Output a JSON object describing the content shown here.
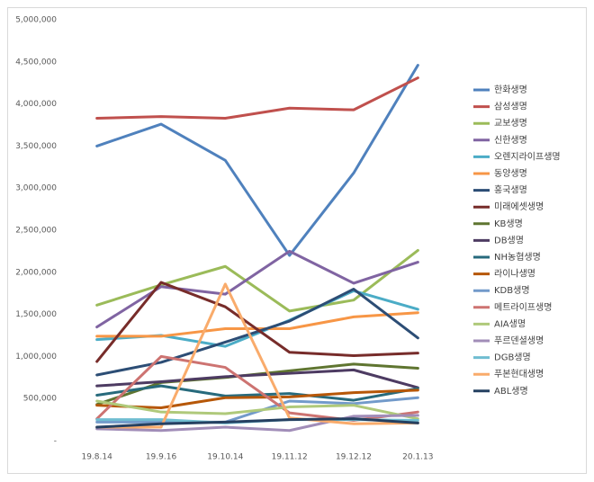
{
  "chart_data": {
    "type": "line",
    "x": [
      "19.8.14",
      "19.9.16",
      "19.10.14",
      "19.11.12",
      "19.12.12",
      "20.1.13"
    ],
    "ylim": [
      0,
      5000000
    ],
    "yticks": [
      {
        "value": 0,
        "label": "-"
      },
      {
        "value": 500000,
        "label": "500,000"
      },
      {
        "value": 1000000,
        "label": "1,000,000"
      },
      {
        "value": 1500000,
        "label": "1,500,000"
      },
      {
        "value": 2000000,
        "label": "2,000,000"
      },
      {
        "value": 2500000,
        "label": "2,500,000"
      },
      {
        "value": 3000000,
        "label": "3,000,000"
      },
      {
        "value": 3500000,
        "label": "3,500,000"
      },
      {
        "value": 4000000,
        "label": "4,000,000"
      },
      {
        "value": 4500000,
        "label": "4,500,000"
      },
      {
        "value": 5000000,
        "label": "5,000,000"
      }
    ],
    "grid": false,
    "legend": "right",
    "series": [
      {
        "name": "한화생명",
        "color": "#4f81bd",
        "values": [
          3500000,
          3760000,
          3330000,
          2200000,
          3180000,
          4460000
        ]
      },
      {
        "name": "삼성생명",
        "color": "#c0504d",
        "values": [
          3830000,
          3850000,
          3830000,
          3950000,
          3930000,
          4310000
        ]
      },
      {
        "name": "교보생명",
        "color": "#9bbb59",
        "values": [
          1610000,
          1850000,
          2070000,
          1540000,
          1670000,
          2260000
        ]
      },
      {
        "name": "신한생명",
        "color": "#8064a2",
        "values": [
          1350000,
          1830000,
          1740000,
          2250000,
          1870000,
          2120000
        ]
      },
      {
        "name": "오렌지라이프생명",
        "color": "#4bacc6",
        "values": [
          1200000,
          1250000,
          1120000,
          1430000,
          1780000,
          1560000
        ]
      },
      {
        "name": "동양생명",
        "color": "#f79646",
        "values": [
          1240000,
          1240000,
          1330000,
          1330000,
          1470000,
          1520000
        ]
      },
      {
        "name": "흥국생명",
        "color": "#2c4d75",
        "values": [
          780000,
          930000,
          1170000,
          1420000,
          1800000,
          1220000
        ]
      },
      {
        "name": "미래에셋생명",
        "color": "#772c2a",
        "values": [
          940000,
          1880000,
          1590000,
          1050000,
          1010000,
          1040000
        ]
      },
      {
        "name": "KB생명",
        "color": "#5f7530",
        "values": [
          430000,
          690000,
          750000,
          830000,
          910000,
          860000
        ]
      },
      {
        "name": "DB생명",
        "color": "#4d3b62",
        "values": [
          650000,
          700000,
          760000,
          800000,
          840000,
          630000
        ]
      },
      {
        "name": "NH농협생명",
        "color": "#276a7c",
        "values": [
          540000,
          650000,
          530000,
          560000,
          480000,
          620000
        ]
      },
      {
        "name": "라이나생명",
        "color": "#b65708",
        "values": [
          420000,
          390000,
          510000,
          520000,
          570000,
          600000
        ]
      },
      {
        "name": "KDB생명",
        "color": "#729aca",
        "values": [
          220000,
          220000,
          220000,
          470000,
          440000,
          510000
        ]
      },
      {
        "name": "메트라이프생명",
        "color": "#cd7371",
        "values": [
          260000,
          1000000,
          870000,
          330000,
          240000,
          340000
        ]
      },
      {
        "name": "AIA생명",
        "color": "#afc97a",
        "values": [
          470000,
          340000,
          320000,
          400000,
          420000,
          260000
        ]
      },
      {
        "name": "푸르덴셜생명",
        "color": "#a18db8",
        "values": [
          140000,
          120000,
          160000,
          120000,
          290000,
          300000
        ]
      },
      {
        "name": "DGB생명",
        "color": "#6fbdd1",
        "values": [
          250000,
          250000,
          210000,
          250000,
          250000,
          240000
        ]
      },
      {
        "name": "푸본현대생명",
        "color": "#f9ab6b",
        "values": [
          160000,
          160000,
          1860000,
          270000,
          200000,
          210000
        ]
      },
      {
        "name": "ABL생명",
        "color": "#254061",
        "values": [
          160000,
          200000,
          220000,
          250000,
          260000,
          210000
        ]
      }
    ]
  }
}
